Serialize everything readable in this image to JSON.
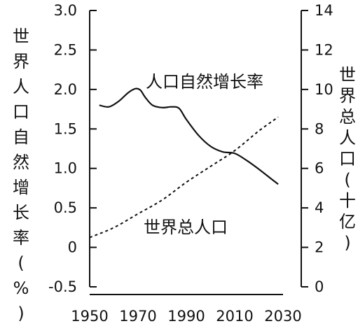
{
  "chart_data": {
    "type": "line",
    "title": "",
    "xlabel": "",
    "xlim": [
      1950,
      2030
    ],
    "x_ticks": [
      "1950",
      "1970",
      "1990",
      "2010",
      "2030"
    ],
    "y_left": {
      "label": "世界人口自然增长率(%)",
      "ylim": [
        -0.5,
        3.0
      ],
      "ticks": [
        "3.0",
        "2.5",
        "2.0",
        "1.5",
        "1.0",
        "0.5",
        "0",
        "-0.5"
      ]
    },
    "y_right": {
      "label": "世界总人口(十亿)",
      "ylim": [
        0,
        14
      ],
      "ticks": [
        "14",
        "12",
        "10",
        "8",
        "6",
        "4",
        "2",
        "0"
      ]
    },
    "grid": false,
    "series": [
      {
        "name": "人口自然增长率",
        "axis": "left",
        "style": "solid",
        "x": [
          1954,
          1958,
          1962,
          1966,
          1969,
          1971,
          1973,
          1976,
          1980,
          1984,
          1987,
          1990,
          1995,
          2000,
          2005,
          2010,
          2015,
          2020,
          2025,
          2028
        ],
        "values": [
          1.8,
          1.78,
          1.85,
          1.96,
          2.01,
          1.99,
          1.9,
          1.8,
          1.77,
          1.78,
          1.76,
          1.62,
          1.42,
          1.28,
          1.21,
          1.19,
          1.1,
          0.99,
          0.87,
          0.8
        ]
      },
      {
        "name": "世界总人口",
        "axis": "right",
        "style": "dashed",
        "x": [
          1950,
          1960,
          1970,
          1980,
          1990,
          2000,
          2010,
          2020,
          2028
        ],
        "values": [
          2.5,
          3.0,
          3.7,
          4.4,
          5.3,
          6.1,
          6.9,
          7.9,
          8.6
        ]
      }
    ]
  }
}
